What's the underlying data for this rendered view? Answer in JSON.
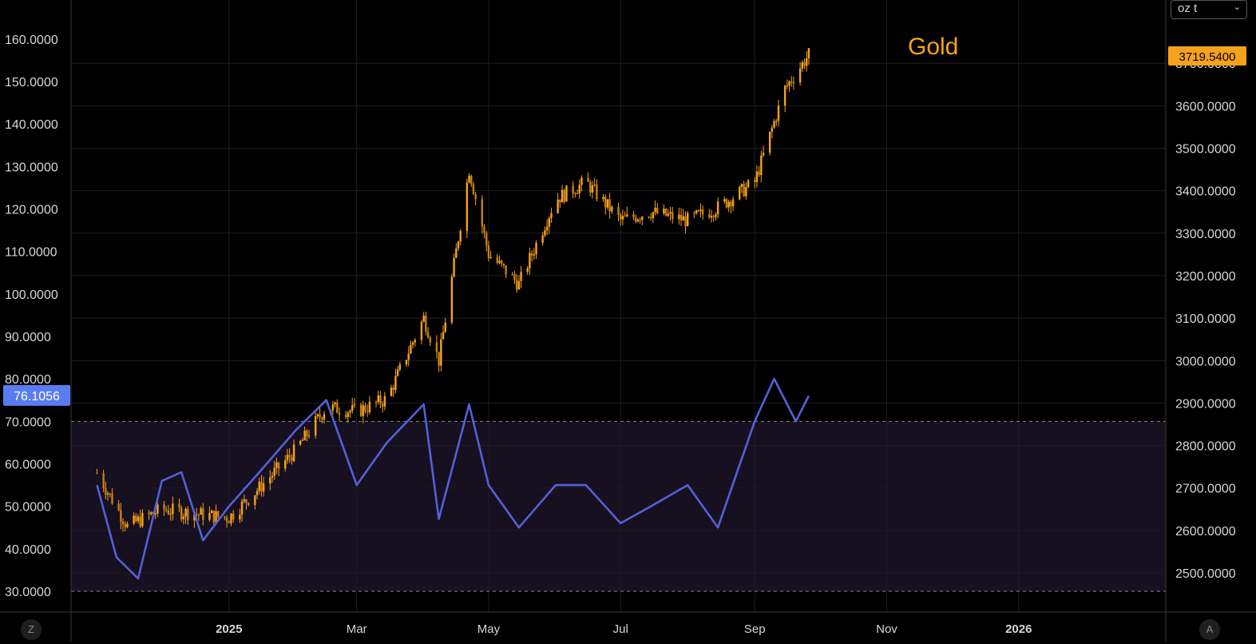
{
  "unit_selector": {
    "value": "oz t",
    "chevron_icon": "chevron-down-icon"
  },
  "buttons": {
    "left_corner": "Z",
    "right_corner": "A"
  },
  "colors": {
    "background": "#000000",
    "gold": "#f7a21b",
    "oscillator": "#5660d8",
    "oscillator_badge": "#5b7cf0",
    "band_fill": "#161020",
    "grid": "#1e1e1e",
    "text": "#d6d6d6"
  },
  "chart_data": [
    {
      "type": "candlestick",
      "series_name": "Gold",
      "y_axis": "right",
      "ylim": [
        2400,
        3700
      ],
      "yticks": [
        "2500.0000",
        "2600.0000",
        "2700.0000",
        "2800.0000",
        "2900.0000",
        "3000.0000",
        "3100.0000",
        "3200.0000",
        "3300.0000",
        "3400.0000",
        "3500.0000",
        "3600.0000",
        "3700.0000"
      ],
      "last_value_label": "3719.5400",
      "x_ticks": [
        "2025",
        "Mar",
        "May",
        "Jul",
        "Sep",
        "Nov",
        "2026"
      ],
      "x": [
        "2024-11-01",
        "2024-11-15",
        "2024-12-01",
        "2024-12-15",
        "2025-01-01",
        "2025-01-15",
        "2025-02-01",
        "2025-02-15",
        "2025-03-01",
        "2025-03-15",
        "2025-04-01",
        "2025-04-08",
        "2025-04-22",
        "2025-05-01",
        "2025-05-15",
        "2025-06-01",
        "2025-06-15",
        "2025-07-01",
        "2025-07-15",
        "2025-08-01",
        "2025-08-15",
        "2025-09-01",
        "2025-09-15",
        "2025-09-26"
      ],
      "close": [
        2735,
        2610,
        2650,
        2640,
        2630,
        2700,
        2790,
        2890,
        2880,
        2910,
        3100,
        3000,
        3450,
        3250,
        3180,
        3380,
        3420,
        3330,
        3350,
        3330,
        3360,
        3420,
        3640,
        3720
      ]
    },
    {
      "type": "line",
      "y_axis": "left",
      "ylim": [
        27,
        163
      ],
      "yticks": [
        "30.0000",
        "40.0000",
        "50.0000",
        "60.0000",
        "70.0000",
        "80.0000",
        "90.0000",
        "100.0000",
        "110.0000",
        "120.0000",
        "130.0000",
        "140.0000",
        "150.0000",
        "160.0000"
      ],
      "last_value_label": "76.1056",
      "band": [
        30,
        70
      ],
      "x": [
        "2024-11-01",
        "2024-11-10",
        "2024-11-20",
        "2024-12-01",
        "2024-12-10",
        "2024-12-20",
        "2025-01-01",
        "2025-01-15",
        "2025-02-01",
        "2025-02-15",
        "2025-03-01",
        "2025-03-15",
        "2025-04-01",
        "2025-04-08",
        "2025-04-22",
        "2025-05-01",
        "2025-05-15",
        "2025-06-01",
        "2025-06-15",
        "2025-07-01",
        "2025-07-15",
        "2025-08-01",
        "2025-08-15",
        "2025-09-01",
        "2025-09-10",
        "2025-09-20",
        "2025-09-26"
      ],
      "y": [
        55,
        38,
        33,
        56,
        58,
        42,
        50,
        58,
        68,
        75,
        55,
        65,
        74,
        47,
        74,
        55,
        45,
        55,
        55,
        46,
        50,
        55,
        45,
        70,
        80,
        70,
        76
      ]
    }
  ]
}
